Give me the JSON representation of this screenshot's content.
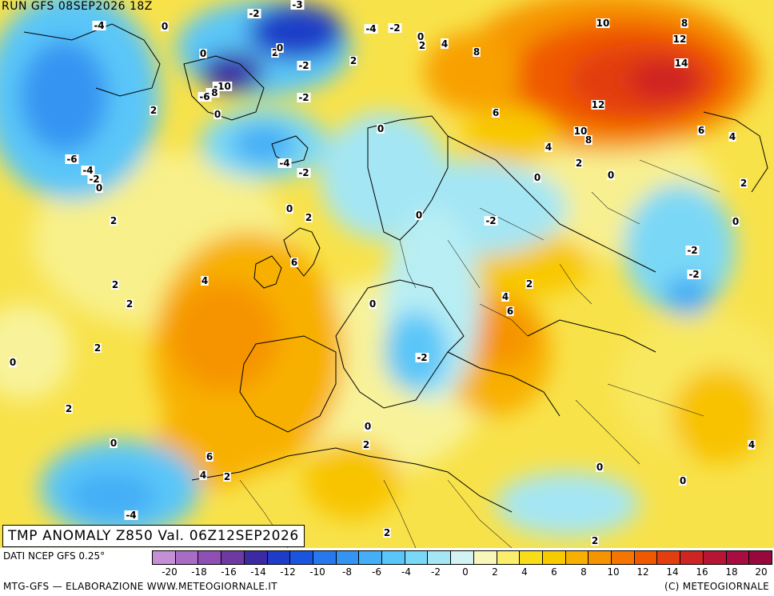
{
  "header": {
    "run": "RUN GFS 08SEP2026 18Z"
  },
  "caption": "TMP ANOMALY Z850 Val. 06Z12SEP2026",
  "footer": {
    "source": "DATI NCEP GFS 0.25°",
    "credit": "MTG-GFS — ELABORAZIONE WWW.METEOGIORNALE.IT",
    "copyright": "(C) METEOGIORNALE"
  },
  "legend": {
    "colors": [
      "#c58fd6",
      "#a86cc6",
      "#8f4fb4",
      "#6e3aa2",
      "#3b2aa4",
      "#1f3cc8",
      "#1a55e0",
      "#2778ec",
      "#3494f2",
      "#44aef6",
      "#5ac6f8",
      "#7ad8f6",
      "#a4e6f4",
      "#d3f2f4",
      "#f8f6b8",
      "#faee6c",
      "#f8de18",
      "#f8ca00",
      "#f8b000",
      "#f69400",
      "#f47600",
      "#f05800",
      "#e23e10",
      "#ce2424",
      "#b81434",
      "#a80c40",
      "#98083c"
    ],
    "ticks": [
      "-20",
      "-18",
      "-16",
      "-14",
      "-12",
      "-10",
      "-8",
      "-6",
      "-4",
      "-2",
      "0",
      "2",
      "4",
      "6",
      "8",
      "10",
      "12",
      "14",
      "16",
      "18",
      "20"
    ]
  },
  "contour_labels": [
    {
      "text": "-4"
    },
    {
      "text": "0"
    },
    {
      "text": "-2"
    },
    {
      "text": "-3"
    },
    {
      "text": "-4"
    },
    {
      "text": "-2"
    },
    {
      "text": "0"
    },
    {
      "text": "2"
    },
    {
      "text": "2"
    },
    {
      "text": "4"
    },
    {
      "text": "10"
    },
    {
      "text": "8"
    },
    {
      "text": "12"
    },
    {
      "text": "14"
    },
    {
      "text": "0"
    },
    {
      "text": "2"
    },
    {
      "text": "0"
    },
    {
      "text": "-2"
    },
    {
      "text": "2"
    },
    {
      "text": "8"
    },
    {
      "text": "-10"
    },
    {
      "text": "-8"
    },
    {
      "text": "-6"
    },
    {
      "text": "-2"
    },
    {
      "text": "0"
    },
    {
      "text": "12"
    },
    {
      "text": "2"
    },
    {
      "text": "6"
    },
    {
      "text": "0"
    },
    {
      "text": "10"
    },
    {
      "text": "8"
    },
    {
      "text": "6"
    },
    {
      "text": "4"
    },
    {
      "text": "4"
    },
    {
      "text": "-6"
    },
    {
      "text": "-4"
    },
    {
      "text": "-4"
    },
    {
      "text": "-2"
    },
    {
      "text": "-2"
    },
    {
      "text": "0"
    },
    {
      "text": "2"
    },
    {
      "text": "0"
    },
    {
      "text": "0"
    },
    {
      "text": "2"
    },
    {
      "text": "2"
    },
    {
      "text": "0"
    },
    {
      "text": "0"
    },
    {
      "text": "-2"
    },
    {
      "text": "2"
    },
    {
      "text": "6"
    },
    {
      "text": "-2"
    },
    {
      "text": "0"
    },
    {
      "text": "2"
    },
    {
      "text": "4"
    },
    {
      "text": "-2"
    },
    {
      "text": "2"
    },
    {
      "text": "4"
    },
    {
      "text": "6"
    },
    {
      "text": "0"
    },
    {
      "text": "2"
    },
    {
      "text": "-2"
    },
    {
      "text": "2"
    },
    {
      "text": "0"
    },
    {
      "text": "2"
    },
    {
      "text": "0"
    },
    {
      "text": "2"
    },
    {
      "text": "0"
    },
    {
      "text": "6"
    },
    {
      "text": "4"
    },
    {
      "text": "2"
    },
    {
      "text": "4"
    },
    {
      "text": "0"
    },
    {
      "text": "0"
    },
    {
      "text": "-4"
    },
    {
      "text": "2"
    },
    {
      "text": "2"
    }
  ]
}
